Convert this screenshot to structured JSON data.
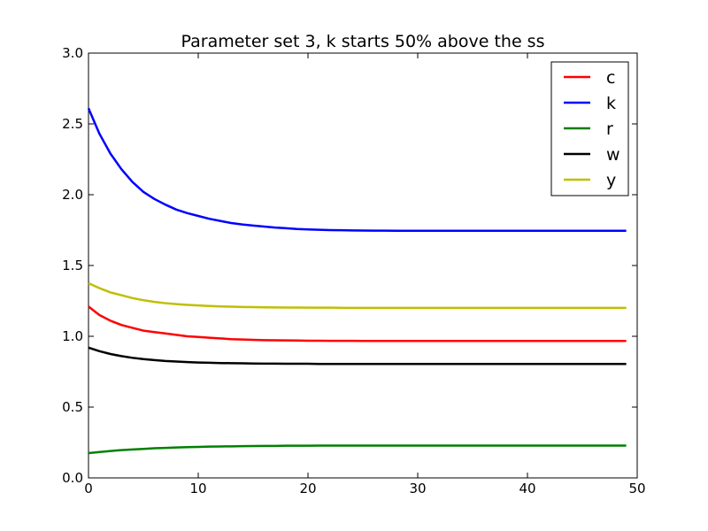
{
  "chart_data": {
    "type": "line",
    "title": "Parameter set 3, k starts 50% above the ss",
    "xlabel": "",
    "ylabel": "",
    "xlim": [
      0,
      50
    ],
    "ylim": [
      0.0,
      3.0
    ],
    "xticks": [
      0,
      10,
      20,
      30,
      40,
      50
    ],
    "yticks": [
      0.0,
      0.5,
      1.0,
      1.5,
      2.0,
      2.5,
      3.0
    ],
    "xtick_labels": [
      "0",
      "10",
      "20",
      "30",
      "40",
      "50"
    ],
    "ytick_labels": [
      "0.0",
      "0.5",
      "1.0",
      "1.5",
      "2.0",
      "2.5",
      "3.0"
    ],
    "grid": false,
    "legend_position": "top-right",
    "x": [
      0,
      1,
      2,
      3,
      4,
      5,
      6,
      7,
      8,
      9,
      10,
      11,
      12,
      13,
      14,
      15,
      16,
      17,
      18,
      19,
      20,
      21,
      22,
      23,
      24,
      25,
      26,
      27,
      28,
      29,
      30,
      31,
      32,
      33,
      34,
      35,
      36,
      37,
      38,
      39,
      40,
      41,
      42,
      43,
      44,
      45,
      46,
      47,
      48,
      49
    ],
    "series": [
      {
        "name": "c",
        "color": "#ff0000",
        "values": [
          1.21,
          1.15,
          1.11,
          1.08,
          1.06,
          1.04,
          1.03,
          1.02,
          1.01,
          1.0,
          0.995,
          0.99,
          0.985,
          0.98,
          0.977,
          0.975,
          0.973,
          0.972,
          0.971,
          0.97,
          0.969,
          0.969,
          0.968,
          0.968,
          0.968,
          0.967,
          0.967,
          0.967,
          0.967,
          0.967,
          0.967,
          0.967,
          0.967,
          0.967,
          0.967,
          0.967,
          0.967,
          0.967,
          0.967,
          0.967,
          0.967,
          0.967,
          0.967,
          0.967,
          0.967,
          0.967,
          0.967,
          0.967,
          0.967,
          0.967
        ]
      },
      {
        "name": "k",
        "color": "#0000ff",
        "values": [
          2.61,
          2.43,
          2.29,
          2.18,
          2.09,
          2.02,
          1.97,
          1.93,
          1.895,
          1.87,
          1.85,
          1.83,
          1.815,
          1.8,
          1.79,
          1.782,
          1.775,
          1.768,
          1.763,
          1.758,
          1.755,
          1.752,
          1.75,
          1.749,
          1.748,
          1.747,
          1.746,
          1.746,
          1.745,
          1.745,
          1.745,
          1.745,
          1.745,
          1.745,
          1.745,
          1.745,
          1.745,
          1.745,
          1.745,
          1.745,
          1.745,
          1.745,
          1.745,
          1.745,
          1.745,
          1.745,
          1.745,
          1.745,
          1.745,
          1.745
        ]
      },
      {
        "name": "r",
        "color": "#008000",
        "values": [
          0.175,
          0.183,
          0.19,
          0.196,
          0.201,
          0.205,
          0.209,
          0.212,
          0.215,
          0.217,
          0.219,
          0.221,
          0.222,
          0.223,
          0.224,
          0.225,
          0.226,
          0.226,
          0.227,
          0.227,
          0.227,
          0.228,
          0.228,
          0.228,
          0.228,
          0.228,
          0.228,
          0.228,
          0.228,
          0.228,
          0.228,
          0.228,
          0.228,
          0.228,
          0.228,
          0.228,
          0.228,
          0.228,
          0.228,
          0.228,
          0.228,
          0.228,
          0.228,
          0.228,
          0.228,
          0.228,
          0.228,
          0.228,
          0.228,
          0.228
        ]
      },
      {
        "name": "w",
        "color": "#000000",
        "values": [
          0.92,
          0.895,
          0.875,
          0.86,
          0.848,
          0.839,
          0.832,
          0.826,
          0.822,
          0.818,
          0.815,
          0.813,
          0.811,
          0.81,
          0.809,
          0.808,
          0.807,
          0.807,
          0.806,
          0.806,
          0.806,
          0.805,
          0.805,
          0.805,
          0.805,
          0.805,
          0.805,
          0.805,
          0.805,
          0.805,
          0.805,
          0.805,
          0.805,
          0.805,
          0.805,
          0.805,
          0.805,
          0.805,
          0.805,
          0.805,
          0.805,
          0.805,
          0.805,
          0.805,
          0.805,
          0.805,
          0.805,
          0.805,
          0.805,
          0.805
        ]
      },
      {
        "name": "y",
        "color": "#bfbf00",
        "values": [
          1.375,
          1.34,
          1.31,
          1.29,
          1.27,
          1.255,
          1.243,
          1.234,
          1.227,
          1.222,
          1.218,
          1.214,
          1.211,
          1.209,
          1.207,
          1.206,
          1.205,
          1.204,
          1.203,
          1.203,
          1.202,
          1.202,
          1.202,
          1.201,
          1.201,
          1.201,
          1.201,
          1.201,
          1.201,
          1.201,
          1.201,
          1.201,
          1.201,
          1.201,
          1.201,
          1.201,
          1.201,
          1.201,
          1.201,
          1.201,
          1.201,
          1.201,
          1.201,
          1.201,
          1.201,
          1.201,
          1.201,
          1.201,
          1.201,
          1.201
        ]
      }
    ]
  }
}
